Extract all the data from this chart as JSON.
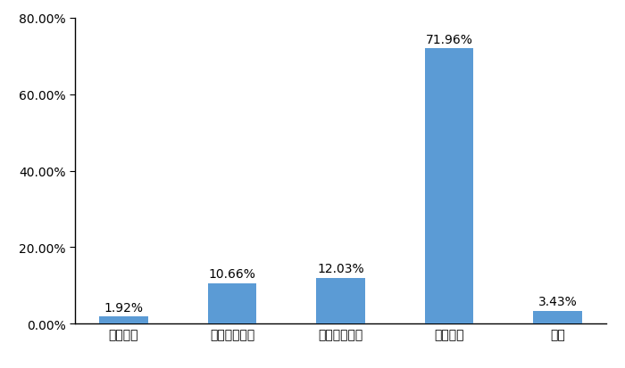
{
  "categories": [
    "微型货车",
    "蓝牌轻型货车",
    "黄牌中型货车",
    "重型货车",
    "其他"
  ],
  "values": [
    1.92,
    10.66,
    12.03,
    71.96,
    3.43
  ],
  "bar_color": "#5b9bd5",
  "labels": [
    "1.92%",
    "10.66%",
    "12.03%",
    "71.96%",
    "3.43%"
  ],
  "ylim": [
    0,
    80
  ],
  "yticks": [
    0,
    20,
    40,
    60,
    80
  ],
  "ytick_labels": [
    "0.00%",
    "20.00%",
    "40.00%",
    "60.00%",
    "80.00%"
  ],
  "background_color": "#ffffff",
  "bar_width": 0.45,
  "label_fontsize": 10,
  "tick_fontsize": 10
}
